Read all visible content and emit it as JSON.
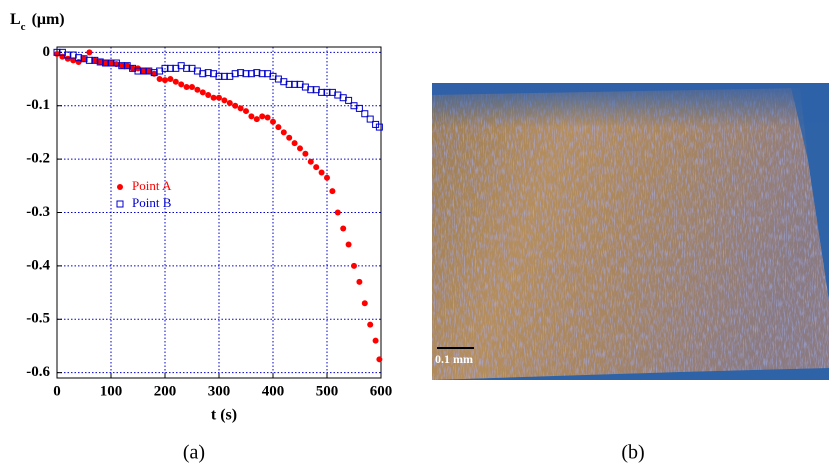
{
  "chart_data": {
    "type": "scatter",
    "ylabel": {
      "symbol": "L",
      "subscript": "c",
      "unit": "(μm)"
    },
    "xlabel": "t (s)",
    "x": [
      0,
      10,
      20,
      30,
      40,
      50,
      60,
      70,
      80,
      90,
      100,
      110,
      120,
      130,
      140,
      150,
      160,
      170,
      180,
      190,
      200,
      210,
      220,
      230,
      240,
      250,
      260,
      270,
      280,
      290,
      300,
      310,
      320,
      330,
      340,
      350,
      360,
      370,
      380,
      390,
      400,
      410,
      420,
      430,
      440,
      450,
      460,
      470,
      480,
      490,
      500,
      510,
      520,
      530,
      540,
      550,
      560,
      570,
      580,
      590,
      597
    ],
    "series": [
      {
        "name": "Point A",
        "color": "#ff0000",
        "marker": "circle",
        "values": [
          -0.003,
          -0.008,
          -0.012,
          -0.015,
          -0.018,
          -0.012,
          0,
          -0.015,
          -0.018,
          -0.02,
          -0.02,
          -0.022,
          -0.025,
          -0.025,
          -0.03,
          -0.03,
          -0.035,
          -0.035,
          -0.04,
          -0.05,
          -0.052,
          -0.05,
          -0.055,
          -0.06,
          -0.065,
          -0.065,
          -0.07,
          -0.075,
          -0.08,
          -0.085,
          -0.085,
          -0.09,
          -0.095,
          -0.1,
          -0.105,
          -0.11,
          -0.12,
          -0.125,
          -0.12,
          -0.122,
          -0.13,
          -0.14,
          -0.15,
          -0.16,
          -0.17,
          -0.18,
          -0.19,
          -0.205,
          -0.215,
          -0.225,
          -0.235,
          -0.26,
          -0.3,
          -0.33,
          -0.36,
          -0.4,
          -0.43,
          -0.47,
          -0.51,
          -0.54,
          -0.575
        ]
      },
      {
        "name": "Point B",
        "color": "#0000cc",
        "marker": "square",
        "values": [
          0,
          0,
          -0.005,
          -0.005,
          -0.01,
          -0.012,
          -0.015,
          -0.015,
          -0.018,
          -0.02,
          -0.02,
          -0.02,
          -0.025,
          -0.025,
          -0.03,
          -0.035,
          -0.035,
          -0.035,
          -0.038,
          -0.035,
          -0.03,
          -0.03,
          -0.03,
          -0.025,
          -0.03,
          -0.03,
          -0.035,
          -0.04,
          -0.038,
          -0.04,
          -0.045,
          -0.045,
          -0.045,
          -0.04,
          -0.038,
          -0.04,
          -0.04,
          -0.038,
          -0.04,
          -0.04,
          -0.045,
          -0.05,
          -0.055,
          -0.06,
          -0.06,
          -0.06,
          -0.065,
          -0.07,
          -0.07,
          -0.075,
          -0.075,
          -0.075,
          -0.08,
          -0.085,
          -0.09,
          -0.1,
          -0.105,
          -0.115,
          -0.125,
          -0.135,
          -0.14
        ]
      }
    ],
    "xlim": [
      0,
      600
    ],
    "xticks": [
      0,
      100,
      200,
      300,
      400,
      500,
      600
    ],
    "ylim": [
      -0.61,
      0.01
    ],
    "yticks": [
      0,
      -0.1,
      -0.2,
      -0.3,
      -0.4,
      -0.5,
      -0.6
    ],
    "grid": true,
    "grid_color": "#0000cc",
    "legend": "center-left"
  },
  "captions": [
    "(a)",
    "(b)"
  ],
  "photo": {
    "scale_label": "0.1 mm"
  }
}
